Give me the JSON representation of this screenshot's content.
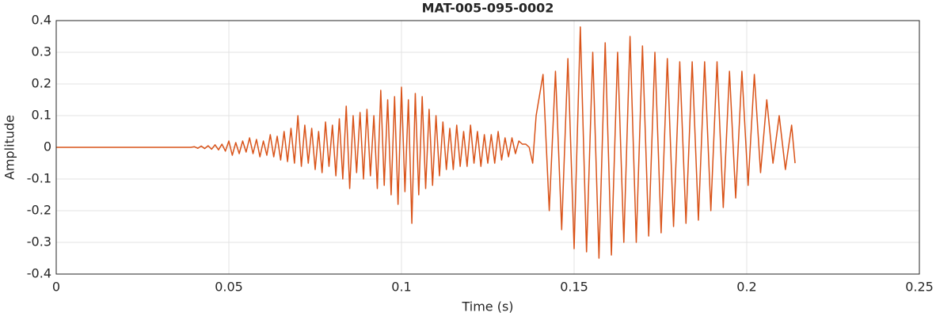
{
  "chart_data": {
    "type": "line",
    "title": "MAT-005-095-0002",
    "xlabel": "Time (s)",
    "ylabel": "Amplitude",
    "xlim": [
      0,
      0.25
    ],
    "xticks": [
      0,
      0.05,
      0.1,
      0.15,
      0.2,
      0.25
    ],
    "ylim": [
      -0.4,
      0.4
    ],
    "yticks": [
      -0.4,
      -0.3,
      -0.2,
      -0.1,
      0,
      0.1,
      0.2,
      0.3,
      0.4
    ],
    "grid": true,
    "series": [
      {
        "color": "#d95319",
        "x": [
          0,
          0.039,
          0.04,
          0.041,
          0.042,
          0.043,
          0.044,
          0.045,
          0.046,
          0.047,
          0.048,
          0.049,
          0.05,
          0.051,
          0.052,
          0.053,
          0.054,
          0.055,
          0.056,
          0.057,
          0.058,
          0.059,
          0.06,
          0.061,
          0.062,
          0.063,
          0.064,
          0.065,
          0.066,
          0.067,
          0.068,
          0.069,
          0.07,
          0.071,
          0.072,
          0.073,
          0.074,
          0.075,
          0.076,
          0.077,
          0.078,
          0.079,
          0.08,
          0.081,
          0.082,
          0.083,
          0.084,
          0.085,
          0.086,
          0.087,
          0.088,
          0.089,
          0.09,
          0.091,
          0.092,
          0.093,
          0.094,
          0.095,
          0.096,
          0.097,
          0.098,
          0.099,
          0.1,
          0.101,
          0.102,
          0.103,
          0.104,
          0.105,
          0.106,
          0.107,
          0.108,
          0.109,
          0.11,
          0.111,
          0.112,
          0.113,
          0.114,
          0.115,
          0.116,
          0.117,
          0.118,
          0.119,
          0.12,
          0.121,
          0.122,
          0.123,
          0.124,
          0.125,
          0.126,
          0.127,
          0.128,
          0.129,
          0.13,
          0.131,
          0.132,
          0.133,
          0.134,
          0.135,
          0.136,
          0.137,
          0.138,
          0.139,
          0.141,
          0.1428,
          0.1446,
          0.1464,
          0.1482,
          0.15,
          0.1518,
          0.1536,
          0.1554,
          0.1572,
          0.159,
          0.1608,
          0.1626,
          0.1644,
          0.1662,
          0.168,
          0.1698,
          0.1716,
          0.1734,
          0.1752,
          0.177,
          0.1788,
          0.1806,
          0.1824,
          0.1842,
          0.186,
          0.1878,
          0.1896,
          0.1914,
          0.1932,
          0.195,
          0.1968,
          0.1986,
          0.2004,
          0.2022,
          0.204,
          0.2058,
          0.2076,
          0.2094,
          0.2112,
          0.213,
          0.214
        ],
        "values": [
          0,
          0,
          0.002,
          -0.003,
          0.004,
          -0.004,
          0.005,
          -0.006,
          0.008,
          -0.008,
          0.01,
          -0.012,
          0.02,
          -0.025,
          0.015,
          -0.02,
          0.02,
          -0.015,
          0.03,
          -0.02,
          0.025,
          -0.03,
          0.02,
          -0.025,
          0.04,
          -0.03,
          0.035,
          -0.04,
          0.05,
          -0.045,
          0.06,
          -0.05,
          0.1,
          -0.06,
          0.07,
          -0.05,
          0.06,
          -0.07,
          0.05,
          -0.08,
          0.08,
          -0.06,
          0.07,
          -0.09,
          0.09,
          -0.1,
          0.13,
          -0.13,
          0.1,
          -0.08,
          0.11,
          -0.1,
          0.12,
          -0.09,
          0.1,
          -0.13,
          0.18,
          -0.12,
          0.15,
          -0.15,
          0.16,
          -0.18,
          0.19,
          -0.14,
          0.15,
          -0.24,
          0.17,
          -0.15,
          0.16,
          -0.13,
          0.12,
          -0.12,
          0.1,
          -0.09,
          0.08,
          -0.07,
          0.06,
          -0.07,
          0.07,
          -0.06,
          0.05,
          -0.06,
          0.07,
          -0.05,
          0.05,
          -0.06,
          0.04,
          -0.05,
          0.04,
          -0.05,
          0.05,
          -0.04,
          0.03,
          -0.03,
          0.03,
          -0.02,
          0.02,
          0.01,
          0.01,
          0.0,
          -0.05,
          0.1,
          0.23,
          -0.2,
          0.24,
          -0.26,
          0.28,
          -0.32,
          0.38,
          -0.33,
          0.3,
          -0.35,
          0.33,
          -0.34,
          0.3,
          -0.3,
          0.35,
          -0.3,
          0.32,
          -0.28,
          0.3,
          -0.27,
          0.28,
          -0.25,
          0.27,
          -0.24,
          0.27,
          -0.23,
          0.27,
          -0.2,
          0.27,
          -0.19,
          0.24,
          -0.16,
          0.24,
          -0.12,
          0.23,
          -0.08,
          0.15,
          -0.05,
          0.1,
          -0.07,
          0.07,
          -0.05
        ]
      }
    ]
  }
}
